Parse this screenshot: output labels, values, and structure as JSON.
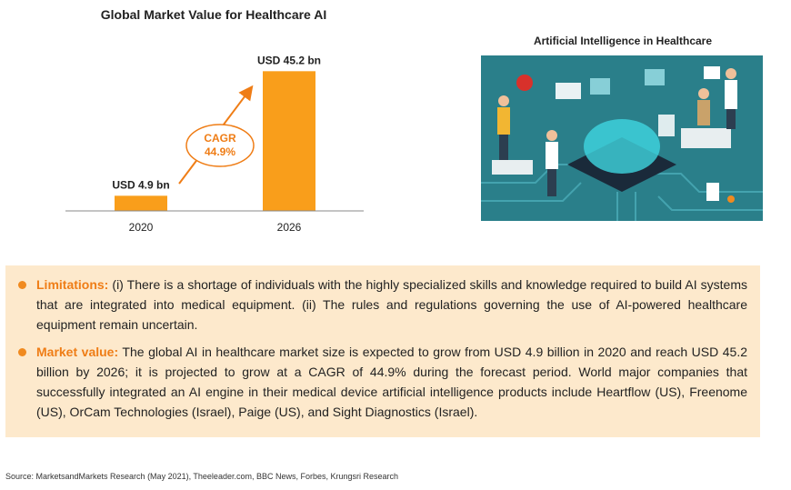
{
  "chart_data": {
    "type": "bar",
    "title": "Global Market Value for Healthcare AI",
    "categories": [
      "2020",
      "2026"
    ],
    "values": [
      4.9,
      45.2
    ],
    "data_labels": [
      "USD 4.9 bn",
      "USD 45.2 bn"
    ],
    "annotation": {
      "line1": "CAGR",
      "line2": "44.9%"
    },
    "ylim": [
      0,
      50
    ],
    "grid": false,
    "colors": {
      "bar": "#f99e1b",
      "accent": "#ef7d16"
    }
  },
  "illustration": {
    "title": "Artificial Intelligence in Healthcare",
    "background": "#2a7f8a"
  },
  "bullets": [
    {
      "lead": "Limitations:",
      "text": " (i) There is a shortage of individuals with the highly specialized skills and knowledge required to build AI systems that are integrated into medical equipment. (ii) The rules and regulations governing the use of AI-powered healthcare equipment remain uncertain."
    },
    {
      "lead": "Market value:",
      "text": " The global AI in healthcare market size is expected to grow from USD 4.9 billion in 2020 and reach USD 45.2 billion by 2026; it is projected to grow at a CAGR of 44.9% during the forecast period. World major companies that successfully integrated an AI engine in their medical device artificial intelligence products include Heartflow (US), Freenome (US), OrCam Technologies (Israel), Paige (US), and Sight Diagnostics (Israel)."
    }
  ],
  "source": "Source: MarketsandMarkets Research (May 2021), Theeleader.com, BBC News, Forbes, Krungsri Research"
}
